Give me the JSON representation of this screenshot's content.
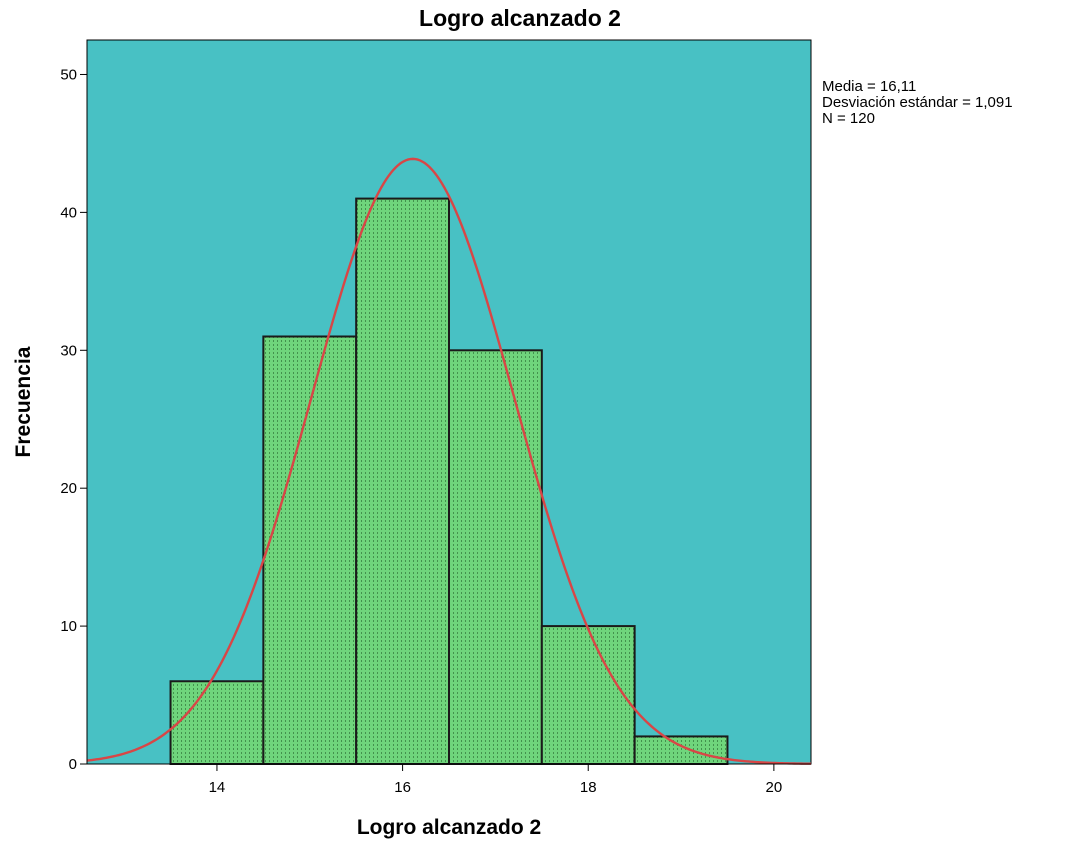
{
  "chart_data": {
    "type": "bar",
    "title": "Logro alcanzado 2",
    "xlabel": "Logro alcanzado 2",
    "ylabel": "Frecuencia",
    "bins": [
      {
        "x0": 13.5,
        "x1": 14.5,
        "count": 6
      },
      {
        "x0": 14.5,
        "x1": 15.5,
        "count": 31
      },
      {
        "x0": 15.5,
        "x1": 16.5,
        "count": 41
      },
      {
        "x0": 16.5,
        "x1": 17.5,
        "count": 30
      },
      {
        "x0": 17.5,
        "x1": 18.5,
        "count": 10
      },
      {
        "x0": 18.5,
        "x1": 19.5,
        "count": 2
      }
    ],
    "xlim": [
      12.6,
      20.4
    ],
    "ylim": [
      0,
      52.5
    ],
    "xticks": [
      14,
      16,
      18,
      20
    ],
    "yticks": [
      0,
      10,
      20,
      30,
      40,
      50
    ],
    "normal_curve": {
      "mean": 16.11,
      "sd": 1.091,
      "n": 120
    },
    "stats_lines": [
      "Media = 16,11",
      "Desviación estándar = 1,091",
      "N = 120"
    ],
    "colors": {
      "plot_background": "#48c1c4",
      "bar_fill": "#6fd57c",
      "bar_stroke": "#1a1a1a",
      "curve": "#d84646"
    },
    "grid": false,
    "legend": "none"
  }
}
